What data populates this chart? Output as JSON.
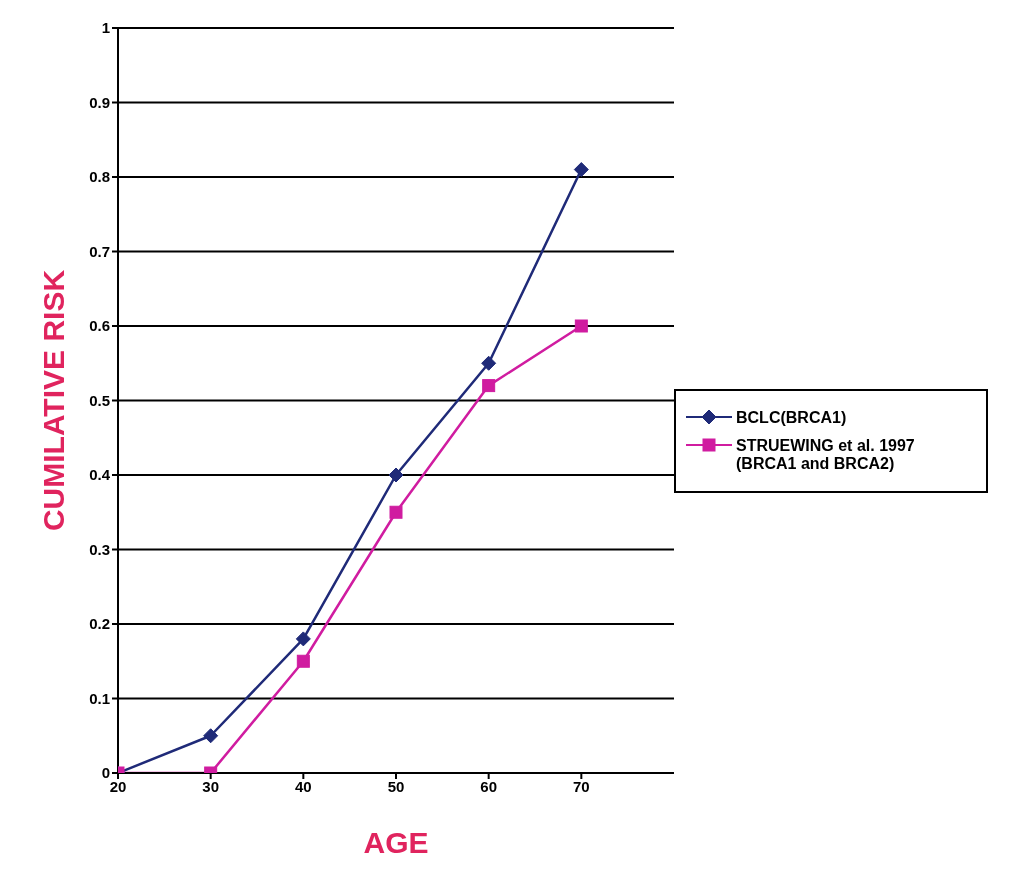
{
  "chart_data": {
    "type": "line",
    "xlabel": "AGE",
    "ylabel": "CUMILATIVE RISK",
    "x": [
      20,
      30,
      40,
      50,
      60,
      70
    ],
    "series": [
      {
        "name": "BCLC(BRCA1)",
        "color": "#1f2a78",
        "marker": "diamond",
        "values": [
          0,
          0.05,
          0.18,
          0.4,
          0.55,
          0.81
        ]
      },
      {
        "name": "STRUEWING et al. 1997 (BRCA1 and BRCA2)",
        "color": "#d01ca0",
        "marker": "square",
        "values": [
          0,
          0,
          0.15,
          0.35,
          0.52,
          0.6
        ]
      }
    ],
    "xlim": [
      20,
      80
    ],
    "xticks": [
      20,
      30,
      40,
      50,
      60,
      70
    ],
    "ylim": [
      0,
      1
    ],
    "yticks": [
      0,
      0.1,
      0.2,
      0.3,
      0.4,
      0.5,
      0.6,
      0.7,
      0.8,
      0.9,
      1
    ],
    "grid": "y",
    "legend": "right"
  }
}
